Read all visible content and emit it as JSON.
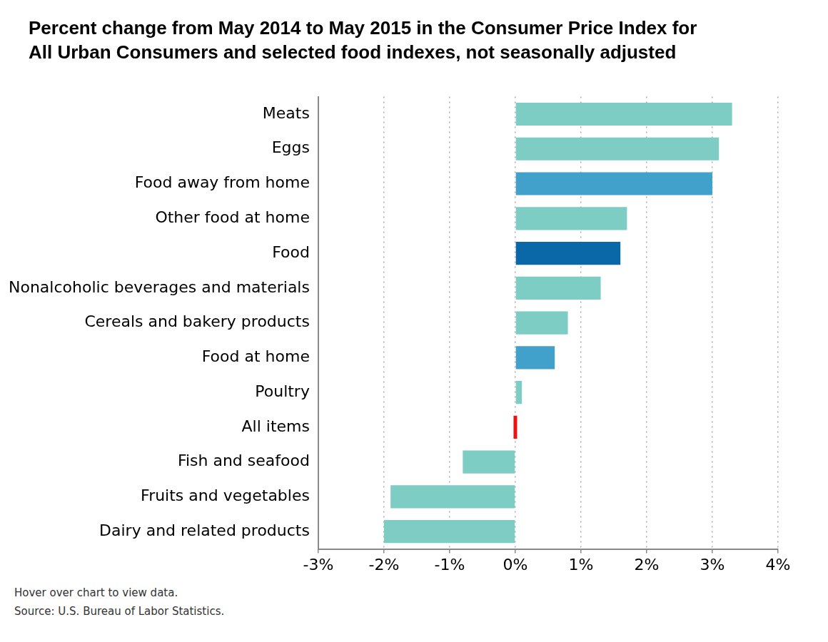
{
  "chart_data": {
    "type": "bar",
    "orientation": "horizontal",
    "title": [
      "Percent change from May 2014 to May 2015 in the Consumer Price Index for",
      "All Urban Consumers and selected food indexes, not seasonally adjusted"
    ],
    "categories": [
      "Meats",
      "Eggs",
      "Food away from home",
      "Other food at home",
      "Food",
      "Nonalcoholic beverages and materials",
      "Cereals and bakery products",
      "Food at home",
      "Poultry",
      "All items",
      "Fish and seafood",
      "Fruits and vegetables",
      "Dairy and related products"
    ],
    "values": [
      3.3,
      3.1,
      3.0,
      1.7,
      1.6,
      1.3,
      0.8,
      0.6,
      0.1,
      0.0,
      -0.8,
      -1.9,
      -2.0
    ],
    "colors": [
      "#7dcdc4",
      "#7dcdc4",
      "#42a1cb",
      "#7dcdc4",
      "#0a67a8",
      "#7dcdc4",
      "#7dcdc4",
      "#42a1cb",
      "#7dcdc4",
      "#ee1111",
      "#7dcdc4",
      "#7dcdc4",
      "#7dcdc4"
    ],
    "xlim": [
      -3,
      4
    ],
    "xticks": [
      {
        "value": -3,
        "label": "-3%"
      },
      {
        "value": -2,
        "label": "-2%"
      },
      {
        "value": -1,
        "label": "-1%"
      },
      {
        "value": 0,
        "label": "0%"
      },
      {
        "value": 1,
        "label": "1%"
      },
      {
        "value": 2,
        "label": "2%"
      },
      {
        "value": 3,
        "label": "3%"
      },
      {
        "value": 4,
        "label": "4%"
      }
    ],
    "grid": true,
    "notes": [
      "Hover over chart to view data.",
      "Source: U.S. Bureau of Labor Statistics."
    ]
  }
}
